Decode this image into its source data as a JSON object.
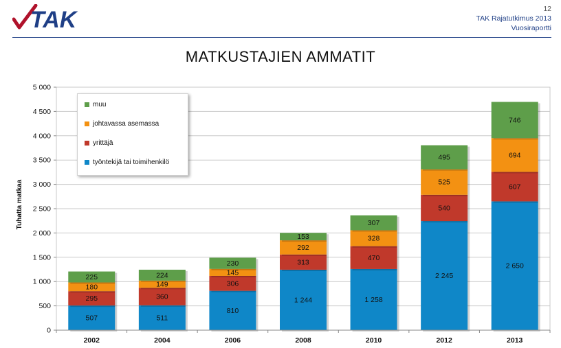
{
  "header": {
    "logo_text": "TAK",
    "page_number": "12",
    "report_title": "TAK Rajatutkimus 2013",
    "report_subtitle": "Vuosiraportti"
  },
  "chart_data": {
    "type": "bar",
    "stacked": true,
    "title": "MATKUSTAJIEN AMMATIT",
    "ylabel": "Tuhatta matkaa",
    "xlabel": "",
    "ylim": [
      0,
      5000
    ],
    "yticks": [
      "0",
      "500",
      "1 000",
      "1 500",
      "2 000",
      "2 500",
      "3 000",
      "3 500",
      "4 000",
      "4 500",
      "5 000"
    ],
    "categories": [
      "2002",
      "2004",
      "2006",
      "2008",
      "2010",
      "2012",
      "2013"
    ],
    "series": [
      {
        "name": "työntekijä tai toimihenkilö",
        "color": "#0f87c8",
        "values": [
          507,
          511,
          810,
          1244,
          1258,
          2245,
          2650
        ],
        "labels": [
          "507",
          "511",
          "810",
          "1 244",
          "1 258",
          "2 245",
          "2 650"
        ]
      },
      {
        "name": "yrittäjä",
        "color": "#c0392b",
        "values": [
          295,
          360,
          306,
          313,
          470,
          540,
          607
        ],
        "labels": [
          "295",
          "360",
          "306",
          "313",
          "470",
          "540",
          "607"
        ]
      },
      {
        "name": "johtavassa asemassa",
        "color": "#f39112",
        "values": [
          180,
          149,
          145,
          292,
          328,
          525,
          694
        ],
        "labels": [
          "180",
          "149",
          "145",
          "292",
          "328",
          "525",
          "694"
        ]
      },
      {
        "name": "muu",
        "color": "#5e9e4a",
        "values": [
          225,
          224,
          230,
          153,
          307,
          495,
          746
        ],
        "labels": [
          "225",
          "224",
          "230",
          "153",
          "307",
          "495",
          "746"
        ]
      }
    ],
    "legend_position": "top-left",
    "grid": true
  }
}
